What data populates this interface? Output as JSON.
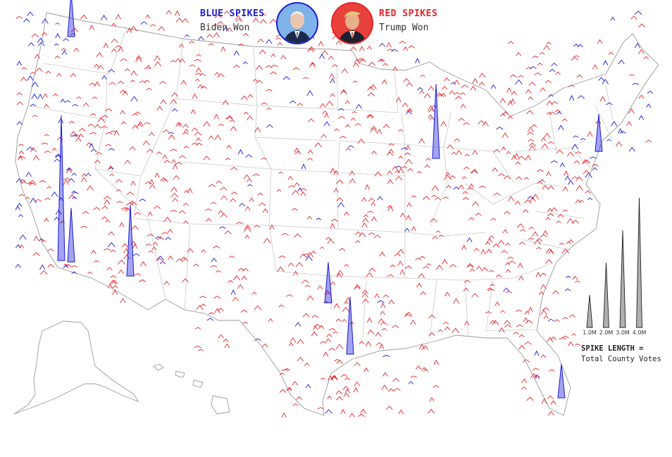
{
  "legend": {
    "blue_title": "BLUE SPIKES",
    "blue_sub": "Biden Won",
    "red_title": "RED SPIKES",
    "red_sub": "Trump Won",
    "blue_color": "#1a1adb",
    "red_color": "#e8242a"
  },
  "scale": {
    "title": "SPIKE LENGTH =",
    "subtitle": "Total County Votes",
    "items": [
      {
        "label": "1.0M",
        "votes_millions": 1.0
      },
      {
        "label": "2.0M",
        "votes_millions": 2.0
      },
      {
        "label": "3.0M",
        "votes_millions": 3.0
      },
      {
        "label": "4.0M",
        "votes_millions": 4.0
      }
    ]
  },
  "large_spikes": [
    {
      "region": "seattle",
      "winner": "blue",
      "votes_millions": 1.3
    },
    {
      "region": "los-angeles",
      "winner": "blue",
      "votes_millions": 4.3
    },
    {
      "region": "phoenix",
      "winner": "blue",
      "votes_millions": 2.1
    },
    {
      "region": "san-diego",
      "winner": "blue",
      "votes_millions": 1.6
    },
    {
      "region": "chicago",
      "winner": "blue",
      "votes_millions": 2.2
    },
    {
      "region": "houston",
      "winner": "blue",
      "votes_millions": 1.7
    },
    {
      "region": "dallas",
      "winner": "blue",
      "votes_millions": 1.2
    },
    {
      "region": "miami",
      "winner": "blue",
      "votes_millions": 1.0
    },
    {
      "region": "new-york",
      "winner": "blue",
      "votes_millions": 1.1
    }
  ]
}
